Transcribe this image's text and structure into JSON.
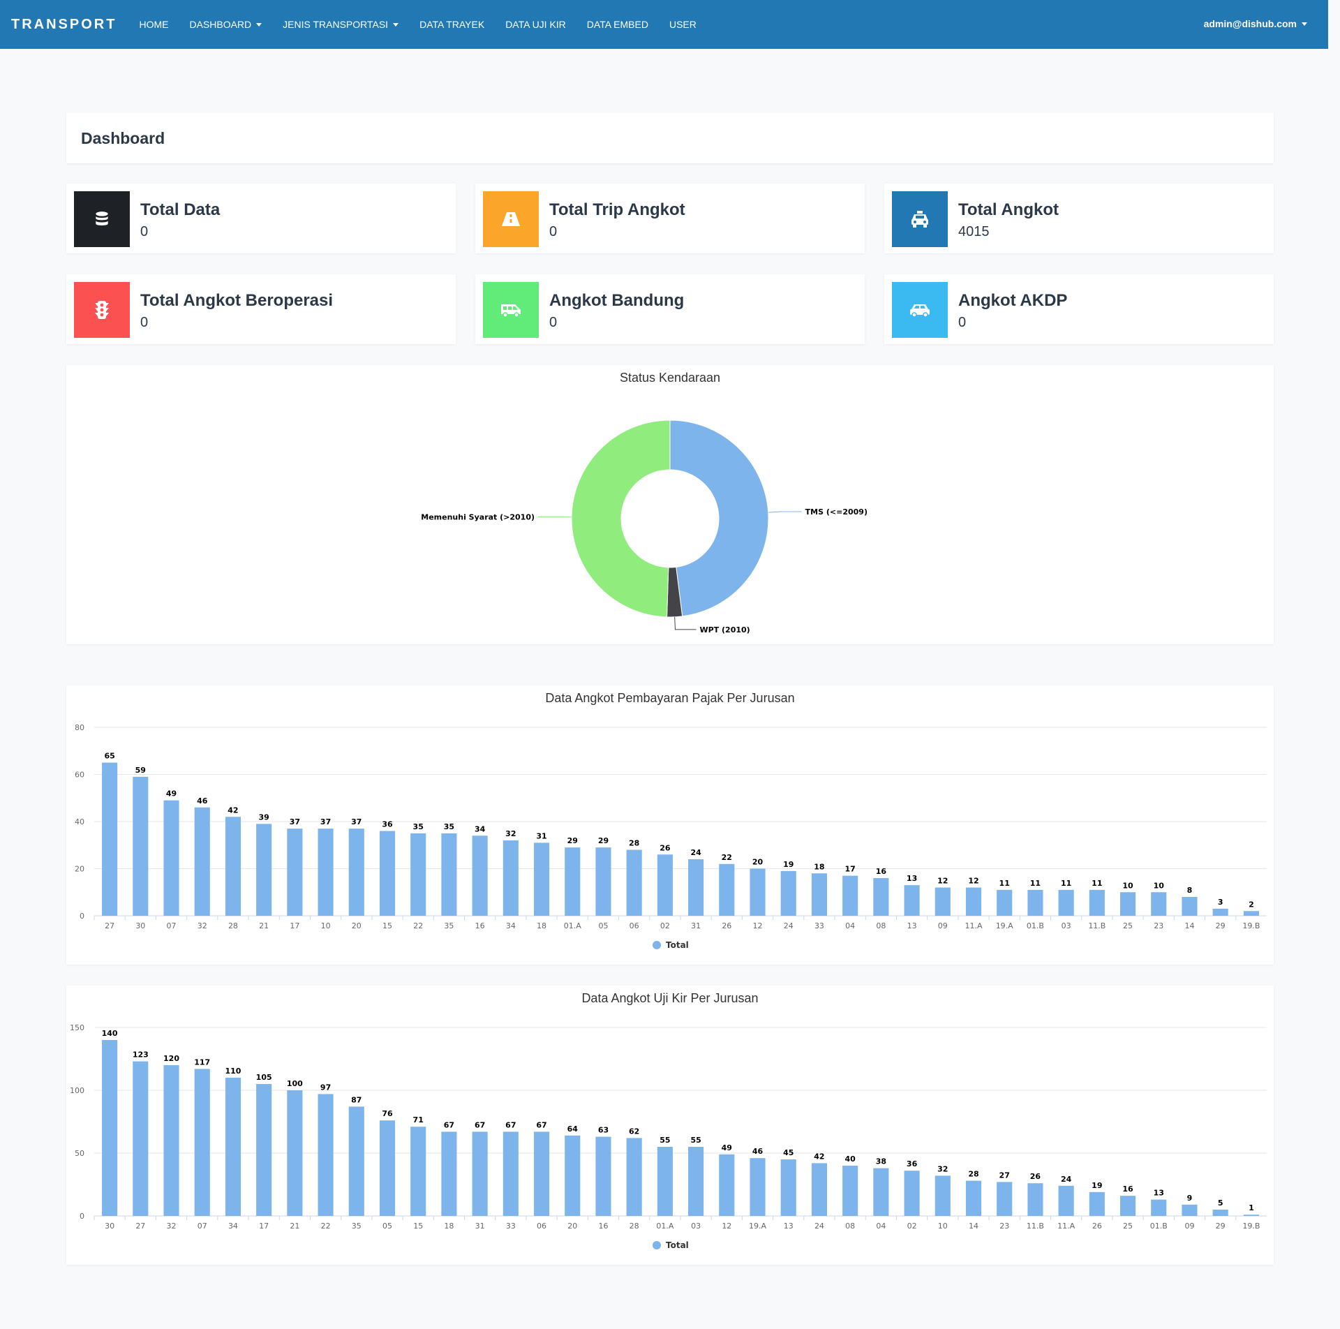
{
  "navbar": {
    "brand": "TRANSPORT",
    "items": [
      {
        "label": "HOME",
        "dropdown": false
      },
      {
        "label": "DASHBOARD",
        "dropdown": true
      },
      {
        "label": "JENIS TRANSPORTASI",
        "dropdown": true
      },
      {
        "label": "DATA TRAYEK",
        "dropdown": false
      },
      {
        "label": "DATA UJI KIR",
        "dropdown": false
      },
      {
        "label": "DATA EMBED",
        "dropdown": false
      },
      {
        "label": "USER",
        "dropdown": false
      }
    ],
    "user": "admin@dishub.com",
    "color": "#2278b3"
  },
  "page_title": "Dashboard",
  "cards": [
    {
      "title": "Total Data",
      "value": "0",
      "icon": "database-icon",
      "color": "#1e2126"
    },
    {
      "title": "Total Trip Angkot",
      "value": "0",
      "icon": "road-icon",
      "color": "#fba52b"
    },
    {
      "title": "Total Angkot",
      "value": "4015",
      "icon": "taxi-icon",
      "color": "#2278b3"
    },
    {
      "title": "Total Angkot Beroperasi",
      "value": "0",
      "icon": "traffic-light-icon",
      "color": "#fb5251"
    },
    {
      "title": "Angkot Bandung",
      "value": "0",
      "icon": "shuttle-van-icon",
      "color": "#61ec79"
    },
    {
      "title": "Angkot AKDP",
      "value": "0",
      "icon": "car-icon",
      "color": "#3bbaf2"
    }
  ],
  "chart_data": [
    {
      "type": "pie",
      "title": "Status Kendaraan",
      "labels": [
        "TMS (<=2009)",
        "WPT (2010)",
        "Memenuhi Syarat (>2010)"
      ],
      "values": [
        48,
        2.5,
        49.5
      ],
      "colors": [
        "#7cb4eb",
        "#434348",
        "#90ed7d"
      ]
    },
    {
      "type": "bar",
      "title": "Data Angkot Pembayaran Pajak Per Jurusan",
      "categories": [
        "27",
        "30",
        "07",
        "32",
        "28",
        "21",
        "17",
        "10",
        "20",
        "15",
        "22",
        "35",
        "16",
        "34",
        "18",
        "01.A",
        "05",
        "06",
        "02",
        "31",
        "26",
        "12",
        "24",
        "33",
        "04",
        "08",
        "13",
        "09",
        "11.A",
        "19.A",
        "01.B",
        "03",
        "11.B",
        "25",
        "23",
        "14",
        "29",
        "19.B"
      ],
      "series": [
        {
          "name": "Total",
          "values": [
            65,
            59,
            49,
            46,
            42,
            39,
            37,
            37,
            37,
            36,
            35,
            35,
            34,
            32,
            31,
            29,
            29,
            28,
            26,
            24,
            22,
            20,
            19,
            18,
            17,
            16,
            13,
            12,
            12,
            11,
            11,
            11,
            11,
            10,
            10,
            8,
            3,
            2
          ]
        }
      ],
      "yticks": [
        0,
        20,
        40,
        60,
        80
      ],
      "ylim": [
        0,
        80
      ],
      "color": "#7cb4eb"
    },
    {
      "type": "bar",
      "title": "Data Angkot Uji Kir Per Jurusan",
      "categories": [
        "30",
        "27",
        "32",
        "07",
        "34",
        "17",
        "21",
        "22",
        "35",
        "05",
        "15",
        "18",
        "31",
        "33",
        "06",
        "20",
        "16",
        "28",
        "01.A",
        "03",
        "12",
        "19.A",
        "13",
        "24",
        "08",
        "04",
        "02",
        "10",
        "14",
        "23",
        "11.B",
        "11.A",
        "26",
        "25",
        "01.B",
        "09",
        "29",
        "19.B"
      ],
      "series": [
        {
          "name": "Total",
          "values": [
            140,
            123,
            120,
            117,
            110,
            105,
            100,
            97,
            87,
            76,
            71,
            67,
            67,
            67,
            67,
            64,
            63,
            62,
            55,
            55,
            49,
            46,
            45,
            42,
            40,
            38,
            36,
            32,
            28,
            27,
            26,
            24,
            19,
            16,
            13,
            9,
            5,
            1
          ]
        }
      ],
      "yticks": [
        0,
        50,
        100,
        150
      ],
      "ylim": [
        0,
        150
      ],
      "color": "#7cb4eb"
    }
  ]
}
